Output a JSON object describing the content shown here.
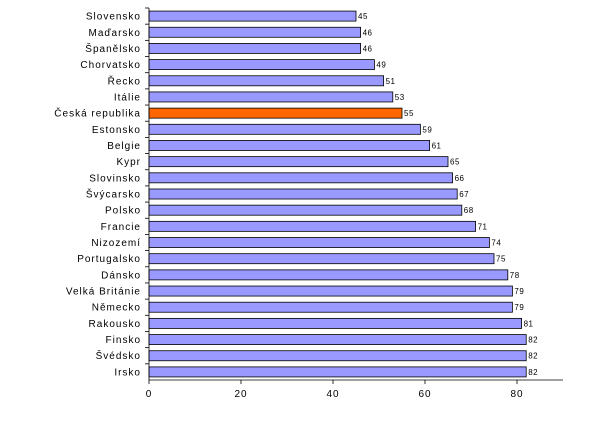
{
  "chart_data": {
    "type": "bar",
    "orientation": "horizontal",
    "categories": [
      "Slovensko",
      "Maďarsko",
      "Španělsko",
      "Chorvatsko",
      "Řecko",
      "Itálie",
      "Česká republika",
      "Estonsko",
      "Belgie",
      "Kypr",
      "Slovinsko",
      "Švýcarsko",
      "Polsko",
      "Francie",
      "Nizozemí",
      "Portugalsko",
      "Dánsko",
      "Velká Británie",
      "Německo",
      "Rakousko",
      "Finsko",
      "Švédsko",
      "Irsko"
    ],
    "values": [
      45,
      46,
      46,
      49,
      51,
      53,
      55,
      59,
      61,
      65,
      66,
      67,
      68,
      71,
      74,
      75,
      78,
      79,
      79,
      81,
      82,
      82,
      82
    ],
    "highlight": "Česká republika",
    "xlim": [
      0,
      90
    ],
    "xticks": [
      0,
      20,
      40,
      60,
      80
    ],
    "grid": false,
    "colors": {
      "bar": "#9999ff",
      "highlight": "#ff6600",
      "border": "#000000"
    }
  }
}
